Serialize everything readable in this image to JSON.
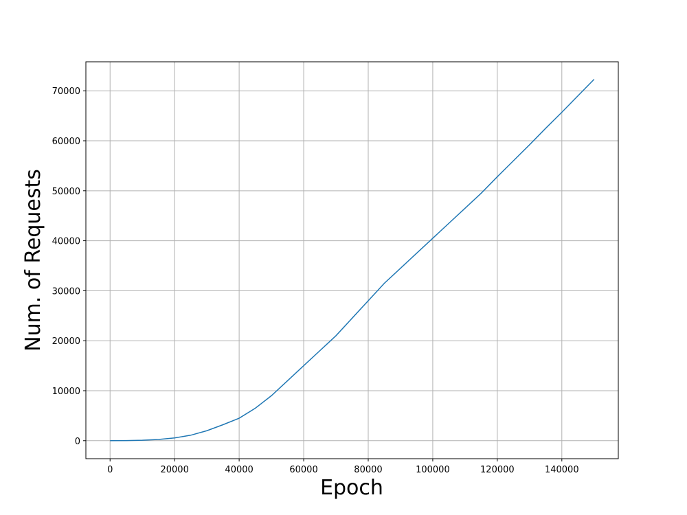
{
  "chart_data": {
    "type": "line",
    "title": "",
    "xlabel": "Epoch",
    "ylabel": "Num. of Requests",
    "xlim": [
      -7500,
      157500
    ],
    "ylim": [
      -3600,
      75800
    ],
    "grid": true,
    "legend": "none",
    "line_color": "#1f77b4",
    "grid_color": "#b0b0b0",
    "x_ticks": [
      0,
      20000,
      40000,
      60000,
      80000,
      100000,
      120000,
      140000
    ],
    "x_tick_labels": [
      "0",
      "20000",
      "40000",
      "60000",
      "80000",
      "100000",
      "120000",
      "140000"
    ],
    "y_ticks": [
      0,
      10000,
      20000,
      30000,
      40000,
      50000,
      60000,
      70000
    ],
    "y_tick_labels": [
      "0",
      "10000",
      "20000",
      "30000",
      "40000",
      "50000",
      "60000",
      "70000"
    ],
    "series": [
      {
        "x": [
          0,
          5000,
          10000,
          15000,
          20000,
          25000,
          30000,
          35000,
          40000,
          45000,
          50000,
          55000,
          60000,
          65000,
          70000,
          75000,
          80000,
          85000,
          90000,
          95000,
          100000,
          105000,
          110000,
          115000,
          120000,
          125000,
          130000,
          135000,
          140000,
          145000,
          150000
        ],
        "values": [
          0,
          20,
          100,
          250,
          550,
          1100,
          2000,
          3200,
          4500,
          6500,
          9000,
          12000,
          15000,
          18000,
          21000,
          24500,
          28000,
          31500,
          34500,
          37500,
          40500,
          43500,
          46500,
          49500,
          52800,
          56000,
          59200,
          62500,
          65700,
          69000,
          72300
        ]
      }
    ]
  }
}
